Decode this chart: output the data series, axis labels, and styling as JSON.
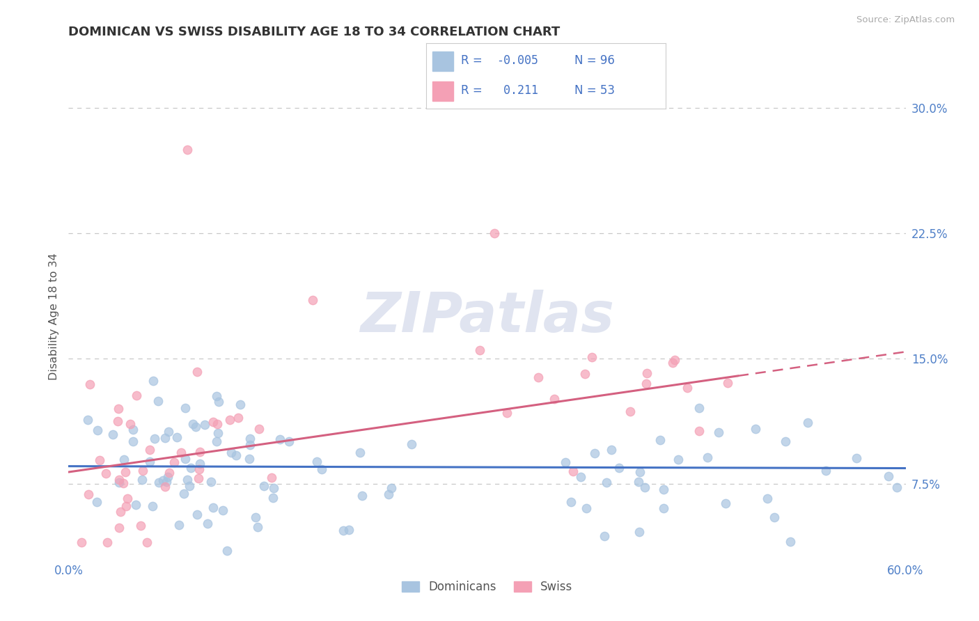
{
  "title": "DOMINICAN VS SWISS DISABILITY AGE 18 TO 34 CORRELATION CHART",
  "source": "Source: ZipAtlas.com",
  "ylabel": "Disability Age 18 to 34",
  "xlim": [
    0.0,
    0.6
  ],
  "ylim": [
    0.03,
    0.32
  ],
  "xticks": [
    0.0,
    0.1,
    0.2,
    0.3,
    0.4,
    0.5,
    0.6
  ],
  "yticks": [
    0.075,
    0.15,
    0.225,
    0.3
  ],
  "yticklabels": [
    "7.5%",
    "15.0%",
    "22.5%",
    "30.0%"
  ],
  "dominican_color": "#a8c4e0",
  "swiss_color": "#f4a0b5",
  "dominican_R": -0.005,
  "dominican_N": 96,
  "swiss_R": 0.211,
  "swiss_N": 53,
  "trend_blue": "#4472c4",
  "trend_pink": "#d46080",
  "grid_color": "#c8c8c8",
  "background_color": "#ffffff",
  "title_color": "#333333",
  "axis_label_color": "#555555",
  "tick_label_color": "#5080c8",
  "legend_R_color": "#4472c4",
  "watermark_color": "#e0e4f0"
}
